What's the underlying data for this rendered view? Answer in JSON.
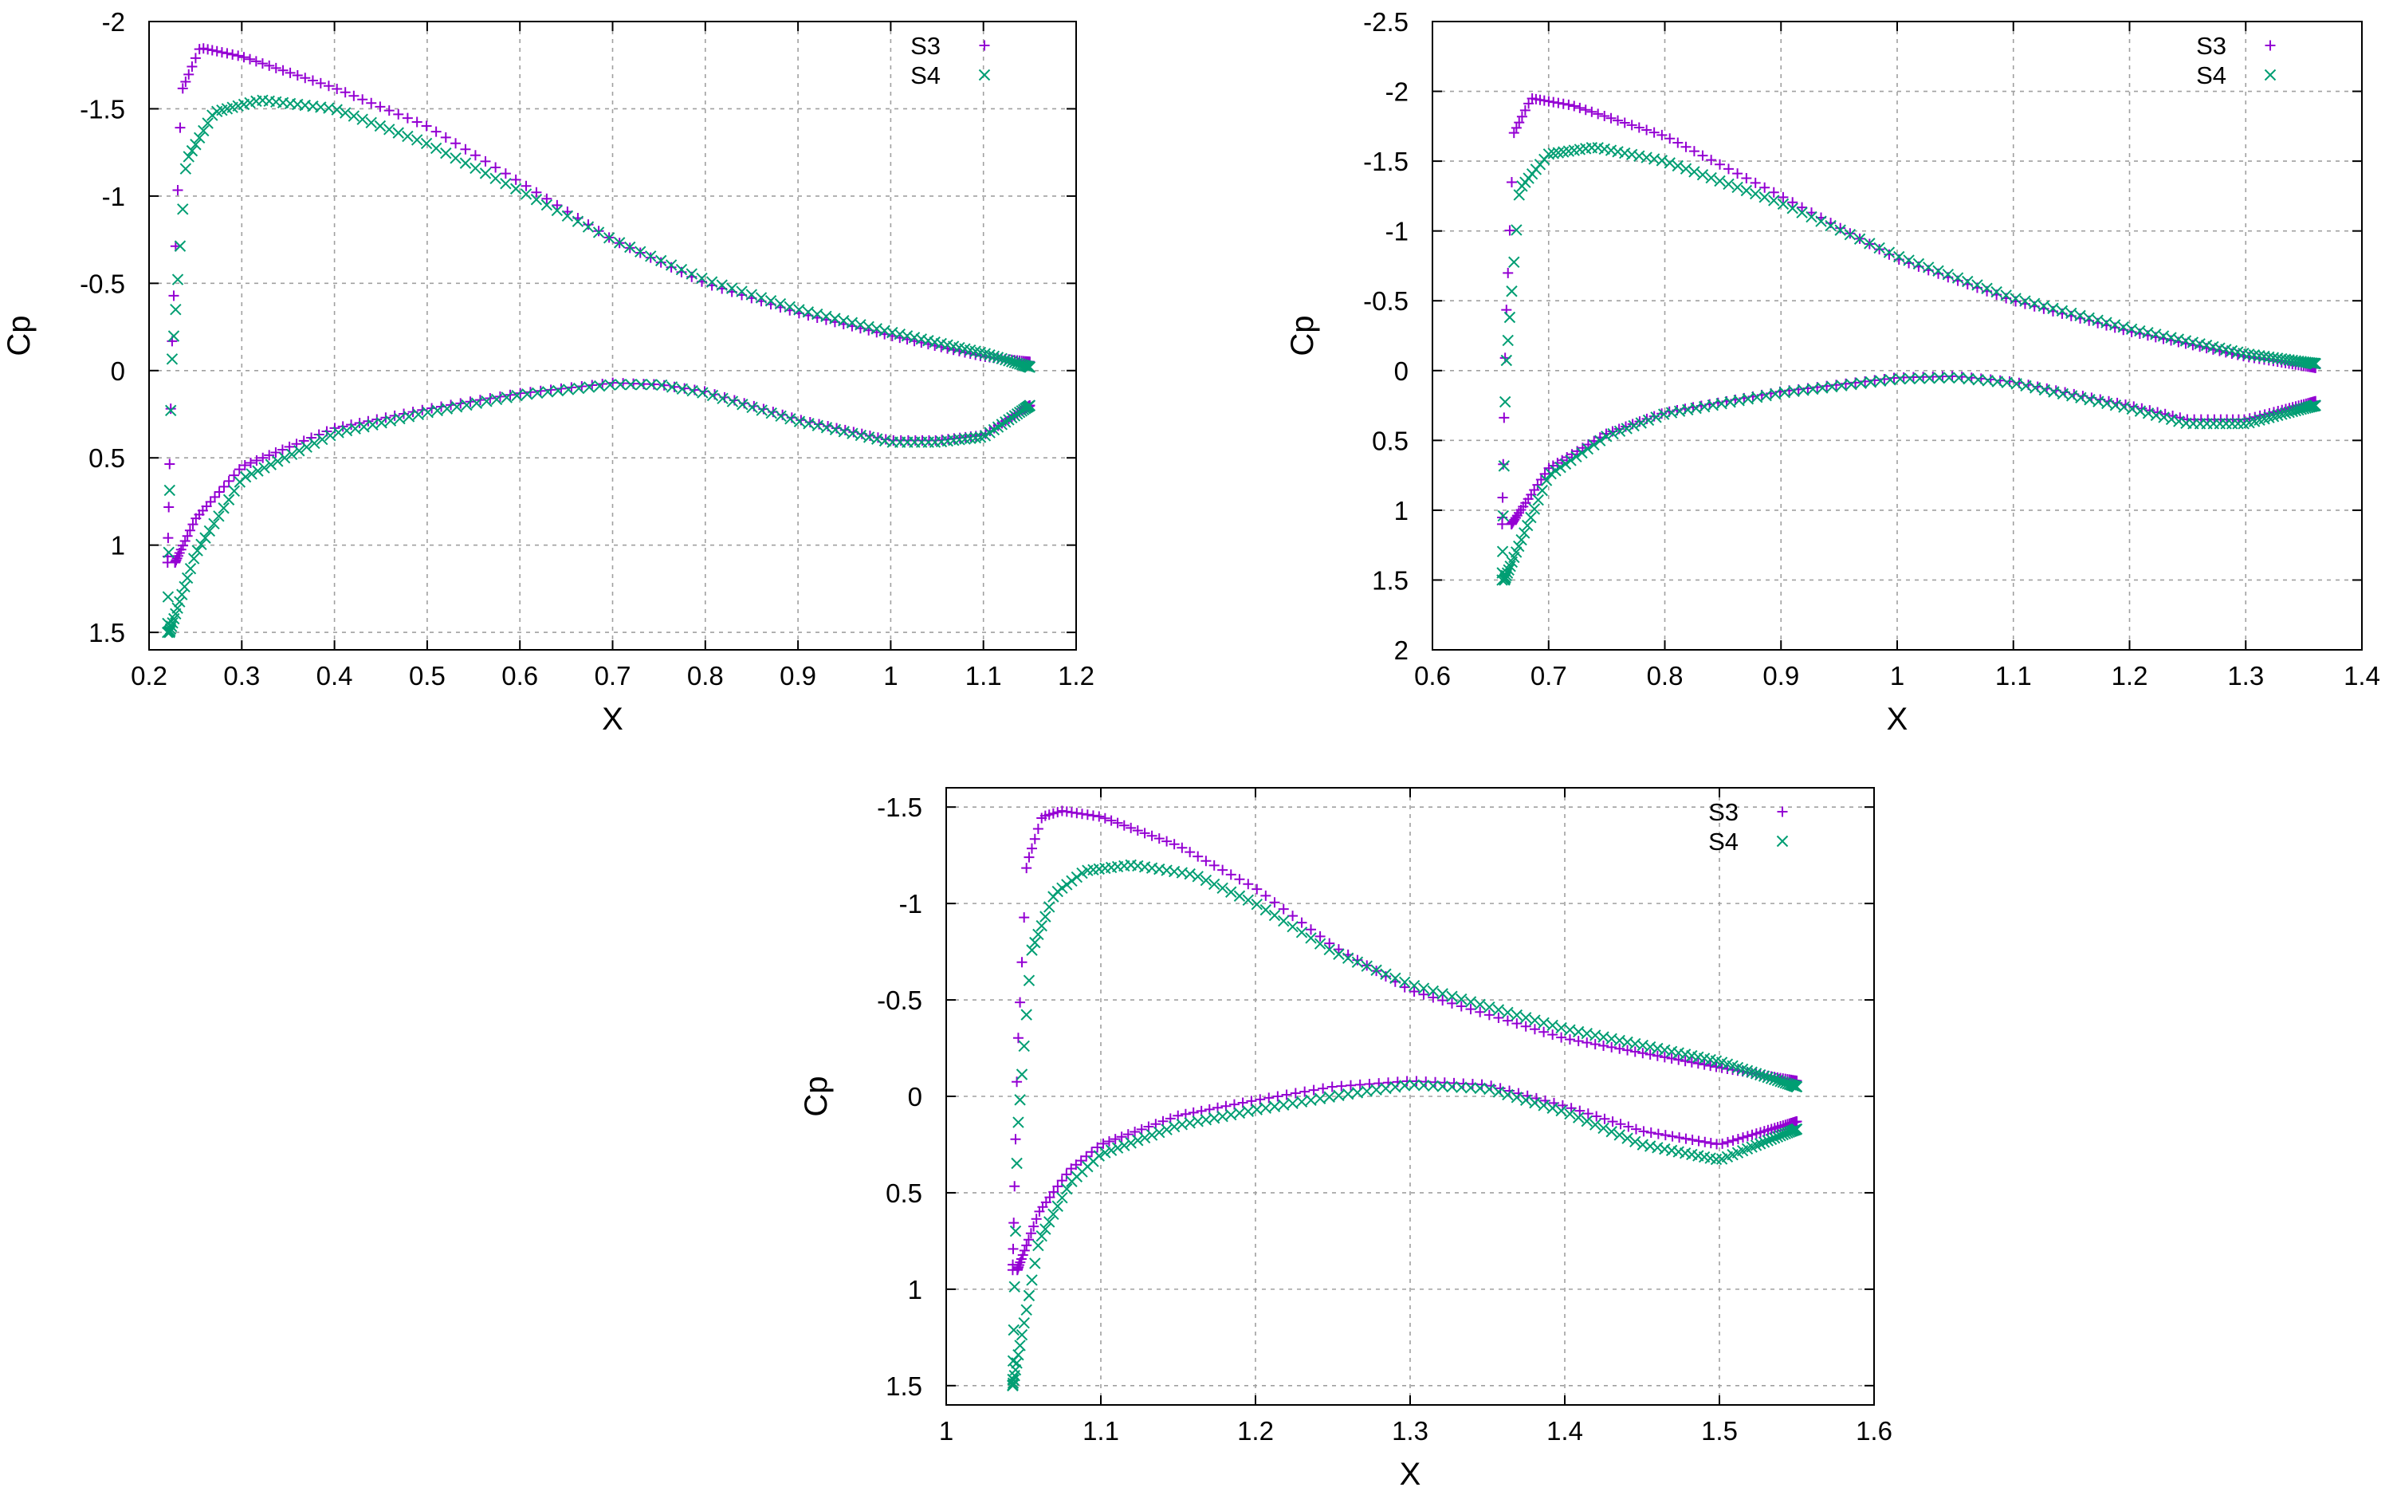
{
  "colors": {
    "S3": "#9400d3",
    "S4": "#009e73"
  },
  "chart_data": [
    {
      "type": "scatter",
      "xlabel": "X",
      "ylabel": "Cp",
      "xlim": [
        0.2,
        1.2
      ],
      "ylim": [
        1.6,
        -2.0
      ],
      "y_inverted": true,
      "grid": true,
      "legend_position": "top-right",
      "xticks": [
        "0.2",
        "0.3",
        "0.4",
        "0.5",
        "0.6",
        "0.7",
        "0.8",
        "0.9",
        "1",
        "1.1",
        "1.2"
      ],
      "yticks": [
        "-2",
        "-1.5",
        "-1",
        "-0.5",
        "0",
        "0.5",
        "1",
        "1.5"
      ],
      "series": [
        {
          "name": "S3",
          "marker": "plus",
          "suction": {
            "x_le": 0.22,
            "x_te": 1.15,
            "stag_cp": 1.1,
            "peak_x": 0.255,
            "peak_cp": -1.85,
            "te_cp": -0.05,
            "x_nodes": [
              0.22,
              0.225,
              0.235,
              0.255,
              0.3,
              0.4,
              0.5,
              0.6,
              0.7,
              0.8,
              0.9,
              1.0,
              1.1,
              1.15
            ],
            "cp_nodes": [
              1.1,
              -0.2,
              -1.6,
              -1.85,
              -1.8,
              -1.62,
              -1.4,
              -1.08,
              -0.75,
              -0.5,
              -0.33,
              -0.2,
              -0.08,
              -0.05
            ]
          },
          "pressure": {
            "x_nodes": [
              0.228,
              0.25,
              0.3,
              0.4,
              0.5,
              0.6,
              0.7,
              0.75,
              0.8,
              0.9,
              1.0,
              1.05,
              1.1,
              1.15
            ],
            "cp_nodes": [
              1.1,
              0.85,
              0.55,
              0.33,
              0.22,
              0.13,
              0.07,
              0.08,
              0.12,
              0.28,
              0.4,
              0.4,
              0.37,
              0.2
            ]
          }
        },
        {
          "name": "S4",
          "marker": "cross",
          "suction": {
            "x_le": 0.22,
            "x_te": 1.15,
            "stag_cp": 1.5,
            "peak_x": 0.32,
            "peak_cp": -1.55,
            "te_cp": -0.02,
            "x_nodes": [
              0.22,
              0.224,
              0.24,
              0.27,
              0.32,
              0.4,
              0.5,
              0.6,
              0.7,
              0.8,
              0.9,
              1.0,
              1.1,
              1.15
            ],
            "cp_nodes": [
              1.5,
              0.0,
              -1.2,
              -1.48,
              -1.55,
              -1.5,
              -1.3,
              -1.03,
              -0.75,
              -0.52,
              -0.35,
              -0.22,
              -0.1,
              -0.02
            ]
          },
          "pressure": {
            "x_nodes": [
              0.222,
              0.25,
              0.3,
              0.4,
              0.5,
              0.6,
              0.7,
              0.75,
              0.8,
              0.9,
              1.0,
              1.05,
              1.1,
              1.15
            ],
            "cp_nodes": [
              1.5,
              1.05,
              0.62,
              0.36,
              0.24,
              0.14,
              0.08,
              0.08,
              0.13,
              0.29,
              0.41,
              0.41,
              0.38,
              0.2
            ]
          }
        }
      ]
    },
    {
      "type": "scatter",
      "xlabel": "X",
      "ylabel": "Cp",
      "xlim": [
        0.6,
        1.4
      ],
      "ylim": [
        2.0,
        -2.5
      ],
      "y_inverted": true,
      "grid": true,
      "legend_position": "top-right",
      "xticks": [
        "0.6",
        "0.7",
        "0.8",
        "0.9",
        "1",
        "1.1",
        "1.2",
        "1.3",
        "1.4"
      ],
      "yticks": [
        "-2.5",
        "-2",
        "-1.5",
        "-1",
        "-0.5",
        "0",
        "0.5",
        "1",
        "1.5",
        "2"
      ],
      "series": [
        {
          "name": "S3",
          "marker": "plus",
          "suction": {
            "x_nodes": [
              0.66,
              0.663,
              0.67,
              0.685,
              0.72,
              0.8,
              0.9,
              1.0,
              1.1,
              1.2,
              1.3,
              1.36
            ],
            "cp_nodes": [
              1.1,
              -0.3,
              -1.7,
              -1.95,
              -1.9,
              -1.68,
              -1.25,
              -0.8,
              -0.5,
              -0.28,
              -0.1,
              -0.02
            ]
          },
          "pressure": {
            "x_nodes": [
              0.668,
              0.7,
              0.75,
              0.8,
              0.9,
              1.0,
              1.05,
              1.1,
              1.2,
              1.25,
              1.3,
              1.36
            ],
            "cp_nodes": [
              1.1,
              0.7,
              0.45,
              0.3,
              0.15,
              0.05,
              0.04,
              0.08,
              0.25,
              0.35,
              0.35,
              0.22
            ]
          }
        },
        {
          "name": "S4",
          "marker": "cross",
          "suction": {
            "x_nodes": [
              0.66,
              0.663,
              0.675,
              0.7,
              0.74,
              0.8,
              0.9,
              1.0,
              1.1,
              1.2,
              1.3,
              1.36
            ],
            "cp_nodes": [
              1.5,
              0.0,
              -1.3,
              -1.55,
              -1.6,
              -1.5,
              -1.2,
              -0.82,
              -0.52,
              -0.3,
              -0.12,
              -0.05
            ]
          },
          "pressure": {
            "x_nodes": [
              0.662,
              0.7,
              0.75,
              0.8,
              0.9,
              1.0,
              1.05,
              1.1,
              1.2,
              1.25,
              1.3,
              1.36
            ],
            "cp_nodes": [
              1.5,
              0.75,
              0.47,
              0.31,
              0.16,
              0.06,
              0.05,
              0.09,
              0.27,
              0.38,
              0.38,
              0.25
            ]
          }
        }
      ]
    },
    {
      "type": "scatter",
      "xlabel": "X",
      "ylabel": "Cp",
      "xlim": [
        1.0,
        1.6
      ],
      "ylim": [
        1.6,
        -1.6
      ],
      "y_inverted": true,
      "grid": true,
      "legend_position": "top-right",
      "xticks": [
        "1",
        "1.1",
        "1.2",
        "1.3",
        "1.4",
        "1.5",
        "1.6"
      ],
      "yticks": [
        "-1.5",
        "-1",
        "-0.5",
        "0",
        "0.5",
        "1",
        "1.5"
      ],
      "series": [
        {
          "name": "S3",
          "marker": "plus",
          "suction": {
            "x_nodes": [
              1.043,
              1.046,
              1.052,
              1.062,
              1.075,
              1.1,
              1.15,
              1.2,
              1.25,
              1.3,
              1.4,
              1.5,
              1.55
            ],
            "cp_nodes": [
              0.9,
              -0.2,
              -1.2,
              -1.45,
              -1.48,
              -1.45,
              -1.3,
              -1.08,
              -0.78,
              -0.55,
              -0.3,
              -0.15,
              -0.08
            ]
          },
          "pressure": {
            "x_nodes": [
              1.046,
              1.06,
              1.08,
              1.1,
              1.15,
              1.2,
              1.25,
              1.3,
              1.35,
              1.4,
              1.45,
              1.5,
              1.55
            ],
            "cp_nodes": [
              0.9,
              0.6,
              0.38,
              0.25,
              0.1,
              0.02,
              -0.05,
              -0.08,
              -0.06,
              0.05,
              0.18,
              0.25,
              0.13
            ]
          }
        },
        {
          "name": "S4",
          "marker": "cross",
          "suction": {
            "x_nodes": [
              1.043,
              1.046,
              1.055,
              1.07,
              1.09,
              1.12,
              1.16,
              1.2,
              1.25,
              1.3,
              1.4,
              1.5,
              1.55
            ],
            "cp_nodes": [
              1.5,
              0.2,
              -0.75,
              -1.05,
              -1.17,
              -1.2,
              -1.15,
              -1.0,
              -0.75,
              -0.58,
              -0.35,
              -0.18,
              -0.05
            ]
          },
          "pressure": {
            "x_nodes": [
              1.043,
              1.06,
              1.08,
              1.1,
              1.15,
              1.2,
              1.25,
              1.3,
              1.35,
              1.4,
              1.45,
              1.5,
              1.55
            ],
            "cp_nodes": [
              1.5,
              0.75,
              0.45,
              0.3,
              0.15,
              0.07,
              0.0,
              -0.06,
              -0.04,
              0.08,
              0.25,
              0.33,
              0.17
            ]
          }
        }
      ]
    }
  ]
}
